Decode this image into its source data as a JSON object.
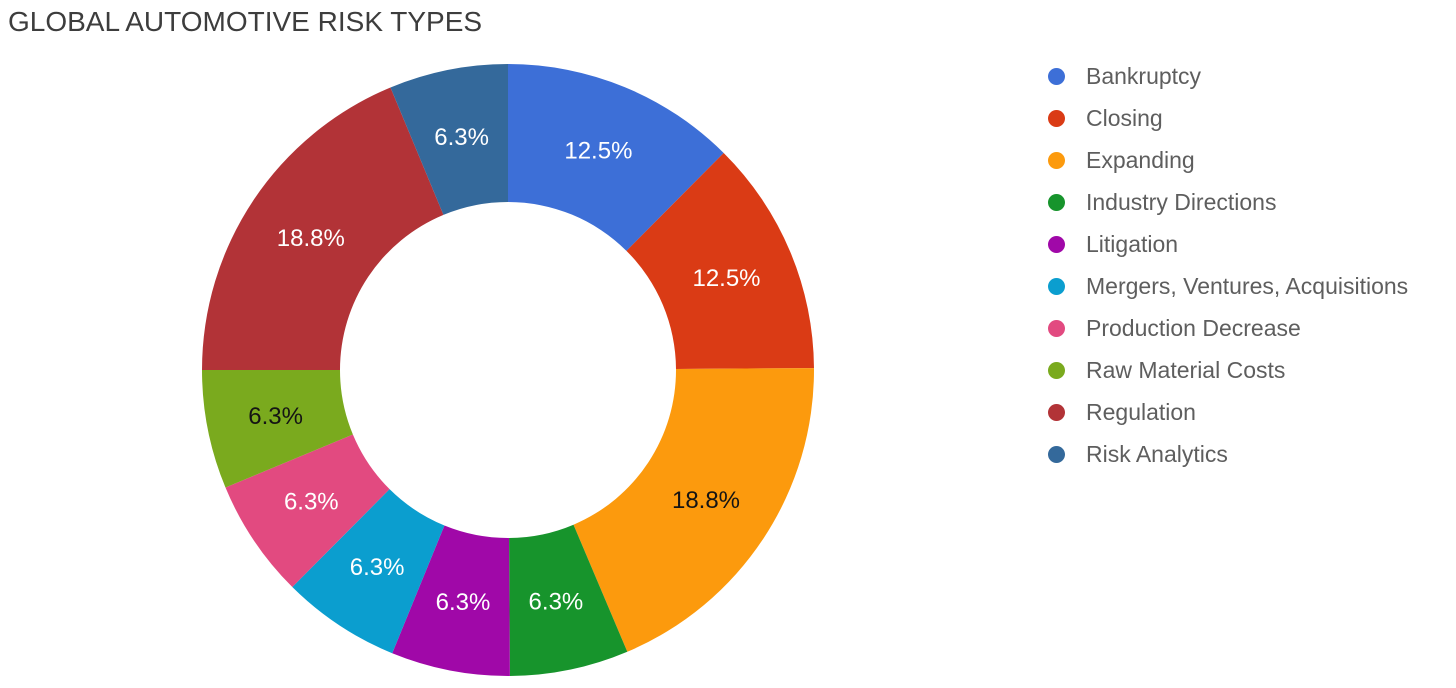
{
  "chart_data": {
    "type": "pie",
    "donut": true,
    "title": "GLOBAL AUTOMOTIVE RISK TYPES",
    "legend_position": "right",
    "inner_radius_ratio": 0.55,
    "start_angle_deg": 0,
    "direction": "clockwise",
    "slices": [
      {
        "name": "Bankruptcy",
        "value": 12.5,
        "label": "12.5%",
        "color": "#3D6FD7",
        "label_color": "#ffffff"
      },
      {
        "name": "Closing",
        "value": 12.5,
        "label": "12.5%",
        "color": "#DA3B15",
        "label_color": "#ffffff"
      },
      {
        "name": "Expanding",
        "value": 18.8,
        "label": "18.8%",
        "color": "#FC9A0D",
        "label_color": "#141414"
      },
      {
        "name": "Industry Directions",
        "value": 6.3,
        "label": "6.3%",
        "color": "#17942C",
        "label_color": "#ffffff"
      },
      {
        "name": "Litigation",
        "value": 6.3,
        "label": "6.3%",
        "color": "#A008A8",
        "label_color": "#ffffff"
      },
      {
        "name": "Mergers, Ventures, Acquisitions",
        "value": 6.3,
        "label": "6.3%",
        "color": "#0B9ECF",
        "label_color": "#ffffff"
      },
      {
        "name": "Production Decrease",
        "value": 6.3,
        "label": "6.3%",
        "color": "#E24A80",
        "label_color": "#ffffff"
      },
      {
        "name": "Raw Material Costs",
        "value": 6.3,
        "label": "6.3%",
        "color": "#7AAA1E",
        "label_color": "#141414"
      },
      {
        "name": "Regulation",
        "value": 18.8,
        "label": "18.8%",
        "color": "#B23337",
        "label_color": "#ffffff"
      },
      {
        "name": "Risk Analytics",
        "value": 6.3,
        "label": "6.3%",
        "color": "#34699B",
        "label_color": "#ffffff"
      }
    ]
  },
  "styles": {
    "title_color": "#3d3d3d",
    "legend_text_color": "#5e5e5e",
    "background": "#ffffff"
  }
}
